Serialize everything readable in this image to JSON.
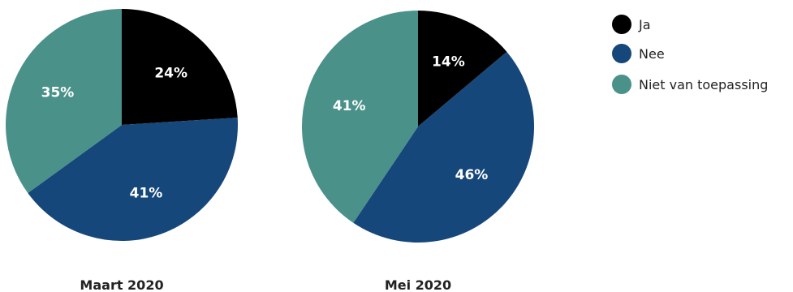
{
  "legend": [
    {
      "label": "Ja",
      "color": "#000000"
    },
    {
      "label": "Nee",
      "color": "#16477b"
    },
    {
      "label": "Niet van toepassing",
      "color": "#4a9189"
    }
  ],
  "chart_data": [
    {
      "type": "pie",
      "caption": "Maart 2020",
      "categories": [
        "Ja",
        "Nee",
        "Niet van toepassing"
      ],
      "values": [
        24,
        41,
        35
      ],
      "labels": [
        "24%",
        "41%",
        "35%"
      ]
    },
    {
      "type": "pie",
      "caption": "Mei 2020",
      "categories": [
        "Ja",
        "Nee",
        "Niet van toepassing"
      ],
      "values": [
        14,
        46,
        41
      ],
      "labels": [
        "14%",
        "46%",
        "41%"
      ]
    }
  ]
}
